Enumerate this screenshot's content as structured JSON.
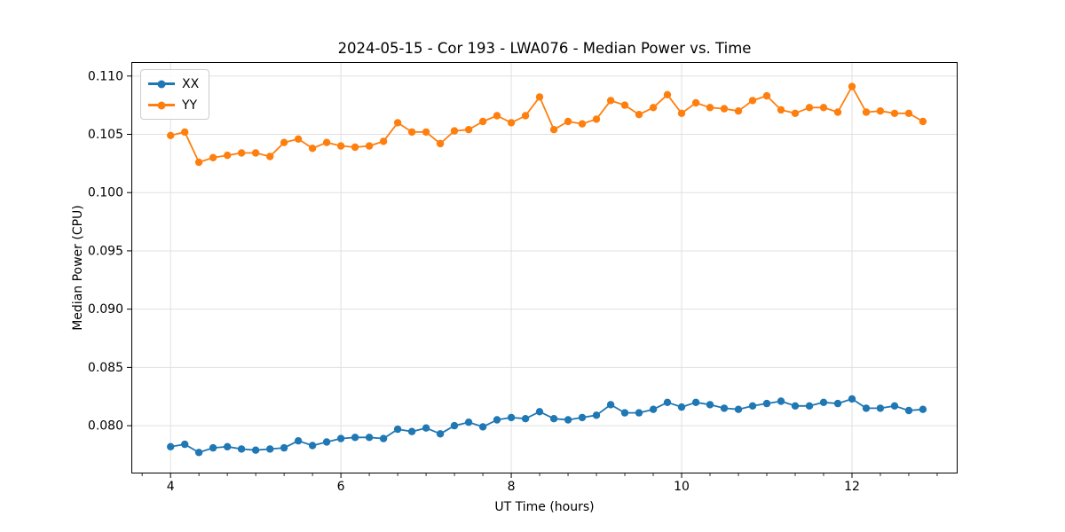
{
  "chart_data": {
    "type": "line",
    "title": "2024-05-15 - Cor 193 - LWA076 - Median Power vs. Time",
    "xlabel": "UT Time (hours)",
    "ylabel": "Median Power (CPU)",
    "xlim": [
      3.54,
      13.24
    ],
    "ylim": [
      0.0759,
      0.1112
    ],
    "grid": true,
    "legend_position": "upper left",
    "marker": "circle",
    "xticks": {
      "values": [
        4,
        6,
        8,
        10,
        12
      ],
      "labels": [
        "4",
        "6",
        "8",
        "10",
        "12"
      ]
    },
    "x_minor_step": 0.33333,
    "yticks": {
      "values": [
        0.08,
        0.085,
        0.09,
        0.095,
        0.1,
        0.105,
        0.11
      ],
      "labels": [
        "0.080",
        "0.085",
        "0.090",
        "0.095",
        "0.100",
        "0.105",
        "0.110"
      ]
    },
    "x": [
      4.0,
      4.167,
      4.333,
      4.5,
      4.667,
      4.833,
      5.0,
      5.167,
      5.333,
      5.5,
      5.667,
      5.833,
      6.0,
      6.167,
      6.333,
      6.5,
      6.667,
      6.833,
      7.0,
      7.167,
      7.333,
      7.5,
      7.667,
      7.833,
      8.0,
      8.167,
      8.333,
      8.5,
      8.667,
      8.833,
      9.0,
      9.167,
      9.333,
      9.5,
      9.667,
      9.833,
      10.0,
      10.167,
      10.333,
      10.5,
      10.667,
      10.833,
      11.0,
      11.167,
      11.333,
      11.5,
      11.667,
      11.833,
      12.0,
      12.167,
      12.333,
      12.5,
      12.667,
      12.833
    ],
    "series": [
      {
        "name": "XX",
        "color": "#1f77b4",
        "values": [
          0.0782,
          0.0784,
          0.0777,
          0.0781,
          0.0782,
          0.078,
          0.0779,
          0.078,
          0.0781,
          0.0787,
          0.0783,
          0.0786,
          0.0789,
          0.079,
          0.079,
          0.0789,
          0.0797,
          0.0795,
          0.0798,
          0.0793,
          0.08,
          0.0803,
          0.0799,
          0.0805,
          0.0807,
          0.0806,
          0.0812,
          0.0806,
          0.0805,
          0.0807,
          0.0809,
          0.0818,
          0.0811,
          0.0811,
          0.0814,
          0.082,
          0.0816,
          0.082,
          0.0818,
          0.0815,
          0.0814,
          0.0817,
          0.0819,
          0.0821,
          0.0817,
          0.0817,
          0.082,
          0.0819,
          0.0823,
          0.0815,
          0.0815,
          0.0817,
          0.0813,
          0.0814
        ]
      },
      {
        "name": "YY",
        "color": "#ff7f0e",
        "values": [
          0.1049,
          0.1052,
          0.1026,
          0.103,
          0.1032,
          0.1034,
          0.1034,
          0.1031,
          0.1043,
          0.1046,
          0.1038,
          0.1043,
          0.104,
          0.1039,
          0.104,
          0.1044,
          0.106,
          0.1052,
          0.1052,
          0.1042,
          0.1053,
          0.1054,
          0.1061,
          0.1066,
          0.106,
          0.1066,
          0.1082,
          0.1054,
          0.1061,
          0.1059,
          0.1063,
          0.1079,
          0.1075,
          0.1067,
          0.1073,
          0.1084,
          0.1068,
          0.1077,
          0.1073,
          0.1072,
          0.107,
          0.1079,
          0.1083,
          0.1071,
          0.1068,
          0.1073,
          0.1073,
          0.1069,
          0.1091,
          0.1069,
          0.107,
          0.1068,
          0.1068,
          0.1061
        ]
      }
    ],
    "styles": {
      "grid_color": "#e0e0e0",
      "spine_color": "#000000",
      "tick_color": "#000000",
      "text_color": "#000000",
      "background": "#ffffff",
      "line_width": 1.8,
      "marker_radius": 4.2
    }
  }
}
